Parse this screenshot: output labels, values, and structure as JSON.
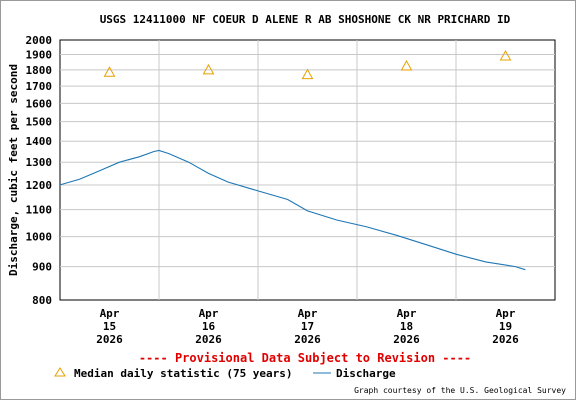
{
  "chart_data": {
    "type": "line",
    "title": "USGS 12411000 NF COEUR D ALENE R AB SHOSHONE CK NR PRICHARD ID",
    "ylabel": "Discharge, cubic feet per second",
    "xlabel": "",
    "y_scale": "log",
    "ylim": [
      800,
      2000
    ],
    "xlim": [
      14.5,
      19.5
    ],
    "y_ticks": [
      800,
      900,
      1000,
      1100,
      1200,
      1300,
      1400,
      1500,
      1600,
      1700,
      1800,
      1900,
      2000
    ],
    "x_ticks": [
      {
        "x": 15,
        "month": "Apr",
        "day": "15",
        "year": "2026"
      },
      {
        "x": 16,
        "month": "Apr",
        "day": "16",
        "year": "2026"
      },
      {
        "x": 17,
        "month": "Apr",
        "day": "17",
        "year": "2026"
      },
      {
        "x": 18,
        "month": "Apr",
        "day": "18",
        "year": "2026"
      },
      {
        "x": 19,
        "month": "Apr",
        "day": "19",
        "year": "2026"
      }
    ],
    "grid": true,
    "series": [
      {
        "name": "Discharge",
        "kind": "line",
        "color": "#1f77b4",
        "points": [
          [
            14.5,
            1200
          ],
          [
            14.7,
            1225
          ],
          [
            14.9,
            1262
          ],
          [
            15.1,
            1300
          ],
          [
            15.3,
            1325
          ],
          [
            15.45,
            1350
          ],
          [
            15.5,
            1355
          ],
          [
            15.6,
            1340
          ],
          [
            15.8,
            1300
          ],
          [
            16.0,
            1250
          ],
          [
            16.2,
            1212
          ],
          [
            16.5,
            1175
          ],
          [
            16.8,
            1140
          ],
          [
            17.0,
            1095
          ],
          [
            17.3,
            1060
          ],
          [
            17.6,
            1035
          ],
          [
            17.9,
            1005
          ],
          [
            18.2,
            972
          ],
          [
            18.5,
            940
          ],
          [
            18.8,
            915
          ],
          [
            19.1,
            900
          ],
          [
            19.2,
            890
          ]
        ]
      },
      {
        "name": "Median daily statistic (75 years)",
        "kind": "marker",
        "color": "#e8a000",
        "points": [
          [
            15,
            1785
          ],
          [
            16,
            1800
          ],
          [
            17,
            1770
          ],
          [
            18,
            1825
          ],
          [
            19,
            1890
          ]
        ]
      }
    ],
    "legend": {
      "placement": "bottom",
      "items": [
        {
          "label": "Median daily statistic (75 years)",
          "symbol": "triangle",
          "color": "#e8a000"
        },
        {
          "label": "Discharge",
          "symbol": "line",
          "color": "#1f77b4"
        }
      ]
    }
  },
  "notes": {
    "provisional": "---- Provisional Data Subject to Revision ----",
    "credit": "Graph courtesy of the U.S. Geological Survey"
  }
}
